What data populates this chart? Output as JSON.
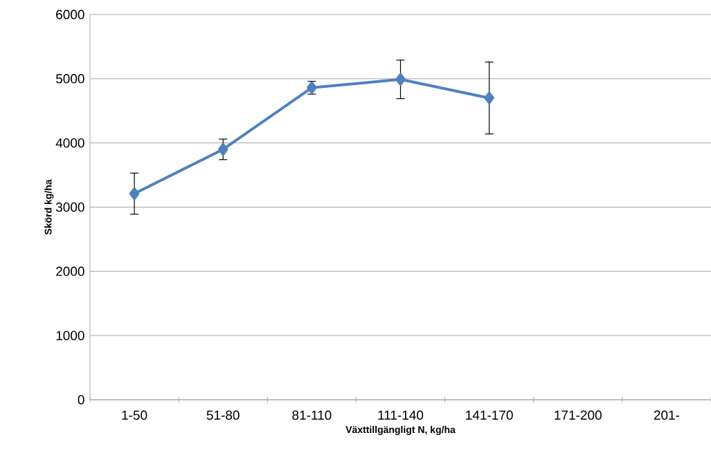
{
  "chart_data": {
    "type": "line",
    "xlabel": "Växttillgängligt N, kg/ha",
    "ylabel": "Skörd kg/ha",
    "categories": [
      "1-50",
      "51-80",
      "81-110",
      "111-140",
      "141-170",
      "171-200",
      "201-"
    ],
    "series": [
      {
        "color": "#4f81bd",
        "values": [
          3210,
          3900,
          4860,
          4990,
          4700,
          null,
          null
        ],
        "errors": [
          320,
          160,
          100,
          300,
          560,
          null,
          null
        ]
      }
    ],
    "ylim": [
      0,
      6000
    ],
    "yticks": [
      0,
      1000,
      2000,
      3000,
      4000,
      5000,
      6000
    ],
    "grid": "y",
    "marker": "diamond",
    "line_style": "solid"
  }
}
